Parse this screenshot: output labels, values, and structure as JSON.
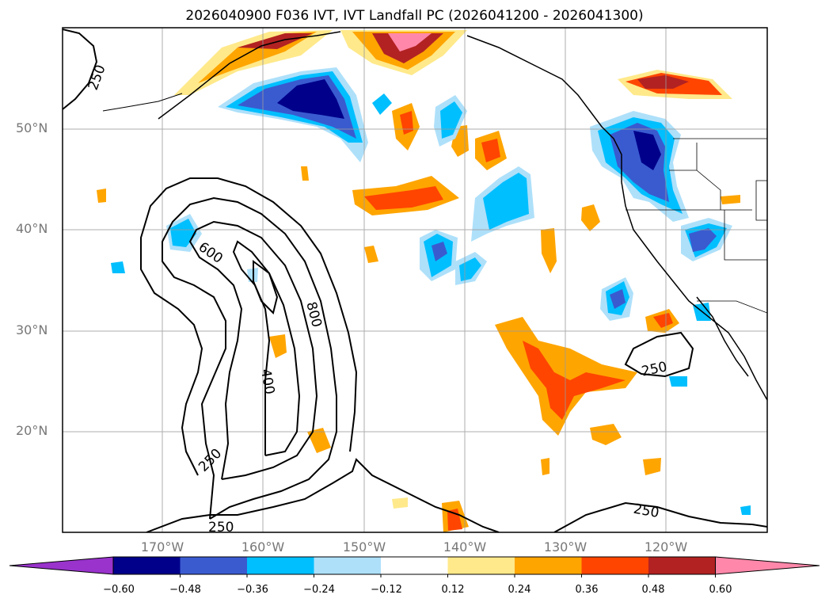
{
  "title": "2026040900 F036 IVT, IVT Landfall PC (2026041200 - 2026041300)",
  "lat_labels": [
    "50°N",
    "40°N",
    "30°N",
    "20°N"
  ],
  "lon_labels": [
    "170°W",
    "160°W",
    "150°W",
    "140°W",
    "130°W",
    "120°W"
  ],
  "contour_labels": [
    "250",
    "600",
    "800",
    "400",
    "250",
    "250",
    "250",
    "250"
  ],
  "colorbar": {
    "ticks": [
      "−0.60",
      "−0.48",
      "−0.36",
      "−0.24",
      "−0.12",
      "0.12",
      "0.24",
      "0.36",
      "0.48",
      "0.60"
    ],
    "colors": [
      "#9933cc",
      "#00008b",
      "#3a5bd0",
      "#00bfff",
      "#aee0fa",
      "#ffffff",
      "#ffe98a",
      "#ffa500",
      "#ff4500",
      "#b22222",
      "#ff88aa"
    ]
  },
  "colors": {
    "neg1": "#aee0fa",
    "neg2": "#00bfff",
    "neg3": "#3a5bd0",
    "neg4": "#00008b",
    "pos1": "#ffe98a",
    "pos2": "#ffa500",
    "pos3": "#ff4500",
    "pos4": "#b22222",
    "pos5": "#ff88aa"
  }
}
